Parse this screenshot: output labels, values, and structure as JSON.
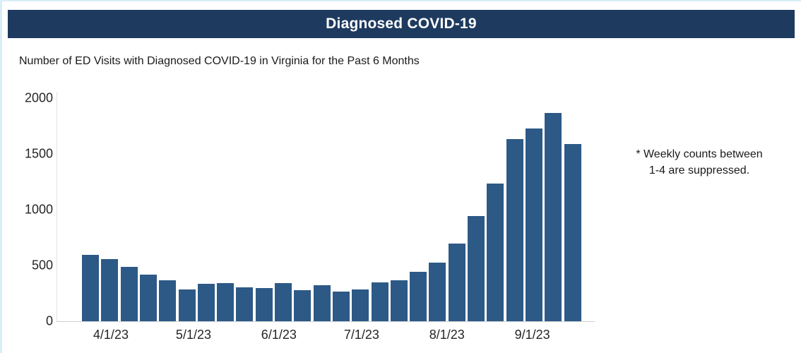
{
  "header": {
    "title": "Diagnosed COVID-19",
    "bg_color": "#1e3a5f",
    "text_color": "#ffffff"
  },
  "subtitle": "Number of ED Visits with Diagnosed COVID-19 in Virginia for the Past 6 Months",
  "note": {
    "line1": "* Weekly counts between",
    "line2": "1-4 are suppressed."
  },
  "chart_data": {
    "type": "bar",
    "title": "Number of ED Visits with Diagnosed COVID-19 in Virginia for the Past 6 Months",
    "xlabel": "",
    "ylabel": "",
    "values": [
      595,
      560,
      485,
      415,
      370,
      285,
      335,
      340,
      305,
      300,
      340,
      280,
      320,
      265,
      285,
      350,
      370,
      445,
      525,
      695,
      940,
      1235,
      1635,
      1725,
      1870,
      1590
    ],
    "x_tick_labels": [
      "4/1/23",
      "5/1/23",
      "6/1/23",
      "7/1/23",
      "8/1/23",
      "9/1/23"
    ],
    "x_tick_positions": [
      1,
      5.286,
      9.714,
      14.0,
      18.429,
      22.857
    ],
    "y_ticks": [
      0,
      500,
      1000,
      1500,
      2000
    ],
    "ylim": [
      0,
      2000
    ],
    "bar_color": "#2d5986",
    "grid": false,
    "legend": false
  }
}
